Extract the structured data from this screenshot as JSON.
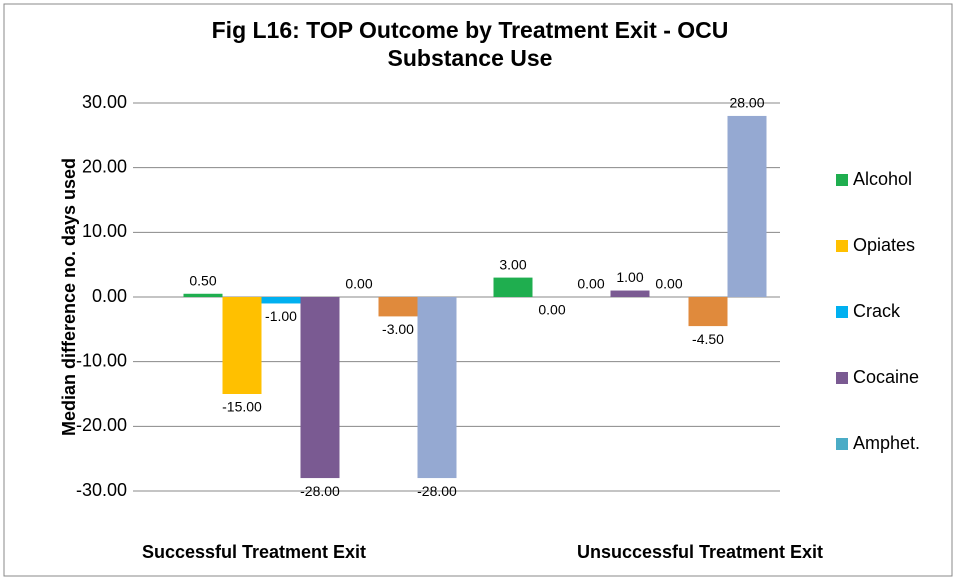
{
  "chart_data": {
    "type": "bar",
    "title": "Fig L16: TOP Outcome by Treatment Exit - OCU Substance Use",
    "y_label": "Median difference no. days used",
    "categories": [
      "Successful Treatment Exit",
      "Unsuccessful Treatment Exit"
    ],
    "series": [
      {
        "name": "Alcohol",
        "color": "#1fae4f",
        "values": [
          0.5,
          3
        ],
        "value_labels": [
          "0.50",
          "3.00"
        ]
      },
      {
        "name": "Opiates",
        "color": "#ffc000",
        "values": [
          -15,
          0
        ],
        "value_labels": [
          "-15.00",
          "0.00"
        ]
      },
      {
        "name": "Crack",
        "color": "#00b0f0",
        "values": [
          -1,
          0
        ],
        "value_labels": [
          "-1.00",
          "0.00"
        ]
      },
      {
        "name": "Cocaine",
        "color": "#7a5a92",
        "values": [
          -28,
          1
        ],
        "value_labels": [
          "-28.00",
          "1.00"
        ]
      },
      {
        "name": "Amphet.",
        "color": "#4bacc6",
        "values": [
          0,
          0
        ],
        "value_labels": [
          "0.00",
          "0.00"
        ]
      },
      {
        "color": "#e08a3c",
        "values": [
          -3,
          -4.5
        ],
        "value_labels": [
          "-3.00",
          "-4.50"
        ]
      },
      {
        "color": "#95a9d2",
        "values": [
          -28,
          28
        ],
        "value_labels": [
          "-28.00",
          "28.00"
        ]
      }
    ],
    "ylim": [
      -30,
      30
    ],
    "yticks": [
      {
        "value": -30,
        "label": "-30.00"
      },
      {
        "value": -20,
        "label": "-20.00"
      },
      {
        "value": -10,
        "label": "-10.00"
      },
      {
        "value": 0,
        "label": "0.00"
      },
      {
        "value": 10,
        "label": "10.00"
      },
      {
        "value": 20,
        "label": "20.00"
      },
      {
        "value": 30,
        "label": "30.00"
      }
    ],
    "grid": true,
    "legend": "right"
  }
}
